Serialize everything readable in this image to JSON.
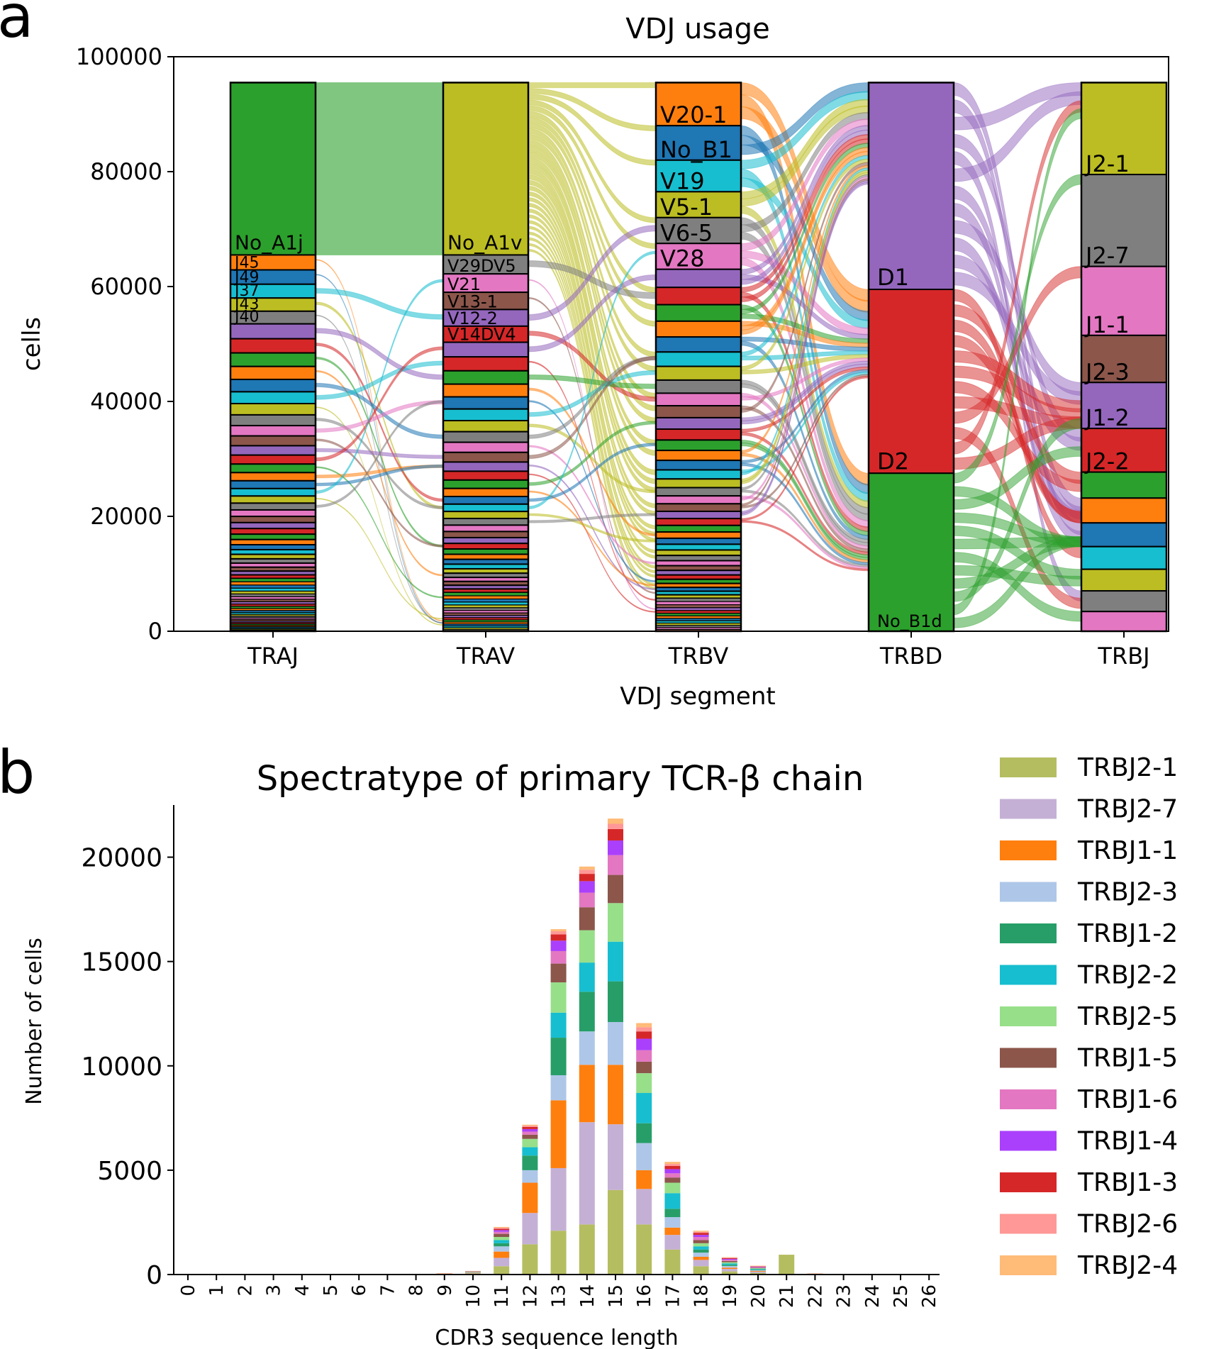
{
  "panels": {
    "a": {
      "letter": "a",
      "title": "VDJ usage",
      "xlabel": "VDJ segment",
      "ylabel": "cells"
    },
    "b": {
      "letter": "b",
      "title": "Spectratype of primary TCR-β chain",
      "xlabel": "CDR3 sequence length",
      "ylabel": "Number of cells"
    }
  },
  "chart_data": [
    {
      "type": "alluvial",
      "title": "VDJ usage",
      "xlabel": "VDJ segment",
      "ylabel": "cells",
      "ylim": [
        0,
        100000
      ],
      "yticks": [
        0,
        20000,
        40000,
        60000,
        80000,
        100000
      ],
      "total_cells": 95500,
      "columns": [
        {
          "name": "TRAJ",
          "labeled_segments": [
            {
              "label": "No_A1j",
              "value": 30000,
              "color": "#2ca02c"
            },
            {
              "label": "J45",
              "value": 2600,
              "color": "#ff7f0e"
            },
            {
              "label": "J49",
              "value": 2500,
              "color": "#1f77b4"
            },
            {
              "label": "J37",
              "value": 2400,
              "color": "#17becf"
            },
            {
              "label": "J43",
              "value": 2300,
              "color": "#bcbd22"
            },
            {
              "label": "J40",
              "value": 2200,
              "color": "#7f7f7f"
            }
          ],
          "display_labels": [
            "No_A1j",
            "J45",
            "J49",
            "J37",
            "J43",
            "J40"
          ]
        },
        {
          "name": "TRAV",
          "labeled_segments": [
            {
              "label": "No_A1v",
              "value": 30000,
              "color": "#bcbd22"
            },
            {
              "label": "V29DV5",
              "value": 3300,
              "color": "#7f7f7f"
            },
            {
              "label": "V21",
              "value": 3200,
              "color": "#e377c2"
            },
            {
              "label": "V13-1",
              "value": 3000,
              "color": "#8c564b"
            },
            {
              "label": "V12-2",
              "value": 2900,
              "color": "#9467bd"
            },
            {
              "label": "V14DV4",
              "value": 2800,
              "color": "#d62728"
            }
          ],
          "display_labels": [
            "No_A1v",
            "V29DV5",
            "V21",
            "V13-1",
            "V12-2",
            "V14DV4"
          ]
        },
        {
          "name": "TRBV",
          "labeled_segments": [
            {
              "label": "V20-1",
              "value": 7500,
              "color": "#ff7f0e"
            },
            {
              "label": "No_B1",
              "value": 6000,
              "color": "#1f77b4"
            },
            {
              "label": "V19",
              "value": 5500,
              "color": "#17becf"
            },
            {
              "label": "V5-1",
              "value": 4500,
              "color": "#bcbd22"
            },
            {
              "label": "V6-5",
              "value": 4500,
              "color": "#7f7f7f"
            },
            {
              "label": "V28",
              "value": 4500,
              "color": "#e377c2"
            }
          ],
          "display_labels": [
            "V20-1",
            "No_B1",
            "V19",
            "V5-1",
            "V6-5",
            "V28"
          ]
        },
        {
          "name": "TRBD",
          "labeled_segments": [
            {
              "label": "D1",
              "value": 36000,
              "color": "#9467bd"
            },
            {
              "label": "D2",
              "value": 32000,
              "color": "#d62728"
            },
            {
              "label": "No_B1d",
              "value": 27500,
              "color": "#2ca02c"
            }
          ],
          "display_labels": [
            "D1",
            "D2",
            "No_B1d"
          ]
        },
        {
          "name": "TRBJ",
          "labeled_segments": [
            {
              "label": "J2-1",
              "value": 16000,
              "color": "#bcbd22"
            },
            {
              "label": "J2-7",
              "value": 16000,
              "color": "#7f7f7f"
            },
            {
              "label": "J1-1",
              "value": 12000,
              "color": "#e377c2"
            },
            {
              "label": "J2-3",
              "value": 8200,
              "color": "#8c564b"
            },
            {
              "label": "J1-2",
              "value": 8000,
              "color": "#9467bd"
            },
            {
              "label": "J2-2",
              "value": 7600,
              "color": "#d62728"
            }
          ],
          "display_labels": [
            "J2-1",
            "J2-7",
            "J1-1",
            "J2-3",
            "J1-2",
            "J2-2"
          ]
        }
      ],
      "small_segment_palette": [
        "#9467bd",
        "#d62728",
        "#2ca02c",
        "#ff7f0e",
        "#1f77b4",
        "#17becf",
        "#bcbd22",
        "#7f7f7f",
        "#e377c2",
        "#8c564b"
      ]
    },
    {
      "type": "bar",
      "stacked": true,
      "title": "Spectratype of primary TCR-β chain",
      "xlabel": "CDR3 sequence length",
      "ylabel": "Number of cells",
      "ylim": [
        0,
        22500
      ],
      "yticks": [
        0,
        5000,
        10000,
        15000,
        20000
      ],
      "legend_position": "right",
      "categories": [
        "0",
        "1",
        "2",
        "3",
        "4",
        "5",
        "6",
        "7",
        "8",
        "9",
        "10",
        "11",
        "12",
        "13",
        "14",
        "15",
        "16",
        "17",
        "18",
        "19",
        "20",
        "21",
        "22",
        "23",
        "24",
        "25",
        "26"
      ],
      "series": [
        {
          "name": "TRBJ2-1",
          "color": "#b5bd61",
          "values": [
            0,
            0,
            0,
            0,
            0,
            0,
            0,
            0,
            0,
            20,
            60,
            400,
            1450,
            2100,
            2400,
            4050,
            2400,
            1200,
            400,
            150,
            80,
            950,
            10,
            0,
            0,
            0,
            0
          ]
        },
        {
          "name": "TRBJ2-7",
          "color": "#c5b0d5",
          "values": [
            0,
            0,
            0,
            0,
            0,
            0,
            0,
            0,
            0,
            10,
            30,
            400,
            1500,
            3000,
            4900,
            3150,
            1700,
            700,
            300,
            120,
            60,
            0,
            10,
            0,
            0,
            0,
            0
          ]
        },
        {
          "name": "TRBJ1-1",
          "color": "#ff7f0e",
          "values": [
            0,
            0,
            0,
            0,
            0,
            0,
            0,
            0,
            0,
            5,
            20,
            300,
            1450,
            3250,
            2750,
            2850,
            900,
            350,
            150,
            60,
            30,
            0,
            5,
            0,
            0,
            0,
            0
          ]
        },
        {
          "name": "TRBJ2-3",
          "color": "#aec7e8",
          "values": [
            0,
            0,
            0,
            0,
            0,
            0,
            0,
            0,
            0,
            5,
            15,
            250,
            600,
            1200,
            1600,
            2050,
            1300,
            500,
            200,
            80,
            40,
            0,
            5,
            0,
            0,
            0,
            0
          ]
        },
        {
          "name": "TRBJ1-2",
          "color": "#279e68",
          "values": [
            0,
            0,
            0,
            0,
            0,
            0,
            0,
            0,
            0,
            3,
            10,
            150,
            700,
            1800,
            1900,
            1950,
            950,
            400,
            150,
            60,
            30,
            0,
            3,
            0,
            0,
            0,
            0
          ]
        },
        {
          "name": "TRBJ2-2",
          "color": "#17becf",
          "values": [
            0,
            0,
            0,
            0,
            0,
            0,
            0,
            0,
            0,
            3,
            8,
            150,
            400,
            1200,
            1400,
            1900,
            1450,
            750,
            150,
            60,
            30,
            0,
            3,
            0,
            0,
            0,
            0
          ]
        },
        {
          "name": "TRBJ2-5",
          "color": "#98df8a",
          "values": [
            0,
            0,
            0,
            0,
            0,
            0,
            0,
            0,
            0,
            2,
            6,
            150,
            400,
            1450,
            1550,
            1850,
            950,
            500,
            150,
            60,
            30,
            0,
            2,
            0,
            0,
            0,
            0
          ]
        },
        {
          "name": "TRBJ1-5",
          "color": "#8c564b",
          "values": [
            0,
            0,
            0,
            0,
            0,
            0,
            0,
            0,
            0,
            2,
            5,
            150,
            200,
            900,
            1100,
            1350,
            550,
            250,
            150,
            60,
            30,
            0,
            2,
            0,
            0,
            0,
            0
          ]
        },
        {
          "name": "TRBJ1-6",
          "color": "#e377c2",
          "values": [
            0,
            0,
            0,
            0,
            0,
            0,
            0,
            0,
            0,
            1,
            4,
            100,
            150,
            600,
            700,
            950,
            550,
            200,
            150,
            60,
            30,
            0,
            1,
            0,
            0,
            0,
            0
          ]
        },
        {
          "name": "TRBJ1-4",
          "color": "#aa40fc",
          "values": [
            0,
            0,
            0,
            0,
            0,
            0,
            0,
            0,
            0,
            1,
            3,
            80,
            120,
            500,
            550,
            700,
            550,
            200,
            100,
            40,
            20,
            0,
            1,
            0,
            0,
            0,
            0
          ]
        },
        {
          "name": "TRBJ1-3",
          "color": "#d62728",
          "values": [
            0,
            0,
            0,
            0,
            0,
            0,
            0,
            0,
            0,
            1,
            2,
            60,
            100,
            300,
            350,
            550,
            350,
            150,
            100,
            40,
            20,
            0,
            1,
            0,
            0,
            0,
            0
          ]
        },
        {
          "name": "TRBJ2-6",
          "color": "#ff9896",
          "values": [
            0,
            0,
            0,
            0,
            0,
            0,
            0,
            0,
            0,
            1,
            2,
            50,
            60,
            150,
            200,
            250,
            200,
            100,
            50,
            20,
            10,
            0,
            1,
            0,
            0,
            0,
            0
          ]
        },
        {
          "name": "TRBJ2-4",
          "color": "#ffbb78",
          "values": [
            0,
            0,
            0,
            0,
            0,
            0,
            0,
            0,
            0,
            1,
            2,
            40,
            50,
            100,
            150,
            250,
            200,
            100,
            50,
            20,
            10,
            0,
            1,
            0,
            0,
            0,
            0
          ]
        }
      ]
    }
  ]
}
